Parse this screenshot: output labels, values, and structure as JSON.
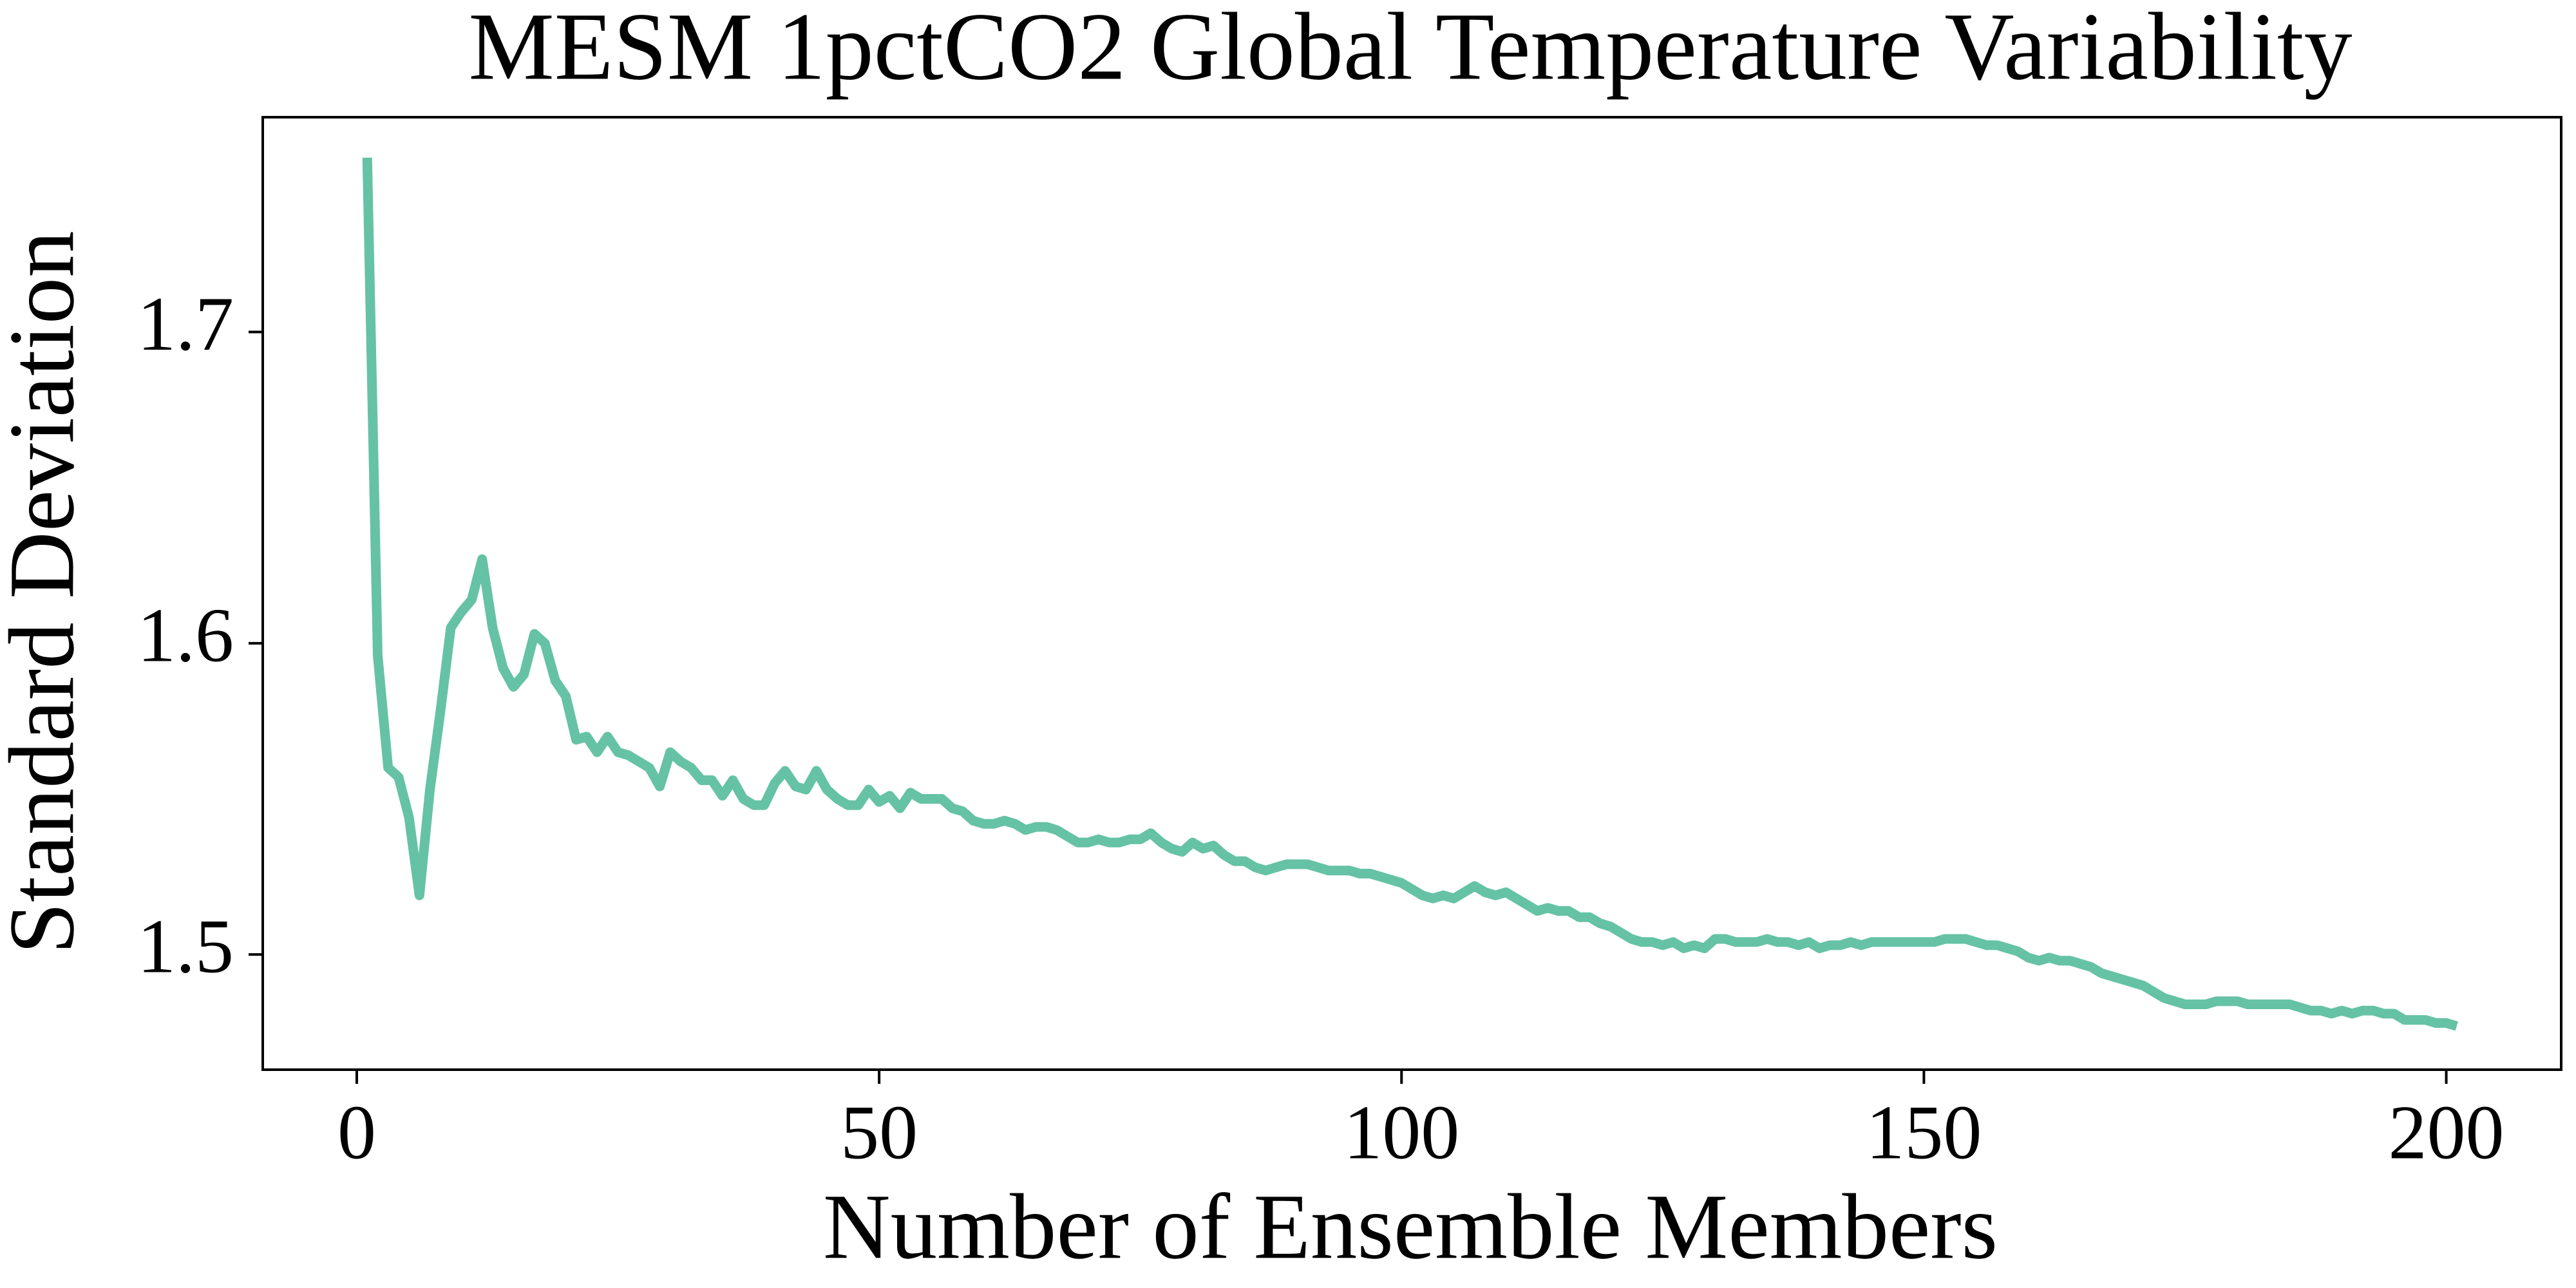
{
  "chart_data": {
    "type": "line",
    "title": "MESM 1pctCO2 Global Temperature Variability",
    "x_label": "Number of Ensemble Members",
    "y_label": "Standard Deviation",
    "x": [
      1,
      2,
      3,
      4,
      5,
      6,
      7,
      8,
      9,
      10,
      11,
      12,
      13,
      14,
      15,
      16,
      17,
      18,
      19,
      20,
      21,
      22,
      23,
      24,
      25,
      26,
      27,
      28,
      29,
      30,
      31,
      32,
      33,
      34,
      35,
      36,
      37,
      38,
      39,
      40,
      41,
      42,
      43,
      44,
      45,
      46,
      47,
      48,
      49,
      50,
      51,
      52,
      53,
      54,
      55,
      56,
      57,
      58,
      59,
      60,
      61,
      62,
      63,
      64,
      65,
      66,
      67,
      68,
      69,
      70,
      71,
      72,
      73,
      74,
      75,
      76,
      77,
      78,
      79,
      80,
      81,
      82,
      83,
      84,
      85,
      86,
      87,
      88,
      89,
      90,
      91,
      92,
      93,
      94,
      95,
      96,
      97,
      98,
      99,
      100,
      101,
      102,
      103,
      104,
      105,
      106,
      107,
      108,
      109,
      110,
      111,
      112,
      113,
      114,
      115,
      116,
      117,
      118,
      119,
      120,
      121,
      122,
      123,
      124,
      125,
      126,
      127,
      128,
      129,
      130,
      131,
      132,
      133,
      134,
      135,
      136,
      137,
      138,
      139,
      140,
      141,
      142,
      143,
      144,
      145,
      146,
      147,
      148,
      149,
      150,
      151,
      152,
      153,
      154,
      155,
      156,
      157,
      158,
      159,
      160,
      161,
      162,
      163,
      164,
      165,
      166,
      167,
      168,
      169,
      170,
      171,
      172,
      173,
      174,
      175,
      176,
      177,
      178,
      179,
      180,
      181,
      182,
      183,
      184,
      185,
      186,
      187,
      188,
      189,
      190,
      191,
      192,
      193,
      194,
      195,
      196,
      197,
      198,
      199,
      200,
      201
    ],
    "series": [
      {
        "color": "#66c2a5",
        "values": [
          1.756,
          1.596,
          1.56,
          1.557,
          1.544,
          1.519,
          1.553,
          1.578,
          1.605,
          1.61,
          1.614,
          1.627,
          1.605,
          1.592,
          1.586,
          1.59,
          1.603,
          1.6,
          1.588,
          1.583,
          1.569,
          1.57,
          1.565,
          1.57,
          1.565,
          1.564,
          1.562,
          1.56,
          1.554,
          1.565,
          1.562,
          1.56,
          1.556,
          1.556,
          1.551,
          1.556,
          1.55,
          1.548,
          1.548,
          1.555,
          1.559,
          1.554,
          1.553,
          1.559,
          1.553,
          1.55,
          1.548,
          1.548,
          1.553,
          1.549,
          1.551,
          1.547,
          1.552,
          1.55,
          1.55,
          1.55,
          1.547,
          1.546,
          1.543,
          1.542,
          1.542,
          1.543,
          1.542,
          1.54,
          1.541,
          1.541,
          1.54,
          1.538,
          1.536,
          1.536,
          1.537,
          1.536,
          1.536,
          1.537,
          1.537,
          1.539,
          1.536,
          1.534,
          1.533,
          1.536,
          1.534,
          1.535,
          1.532,
          1.53,
          1.53,
          1.528,
          1.527,
          1.528,
          1.529,
          1.529,
          1.529,
          1.528,
          1.527,
          1.527,
          1.527,
          1.526,
          1.526,
          1.525,
          1.524,
          1.523,
          1.521,
          1.519,
          1.518,
          1.519,
          1.518,
          1.52,
          1.522,
          1.52,
          1.519,
          1.52,
          1.518,
          1.516,
          1.514,
          1.515,
          1.514,
          1.514,
          1.512,
          1.512,
          1.51,
          1.509,
          1.507,
          1.505,
          1.504,
          1.504,
          1.503,
          1.504,
          1.502,
          1.503,
          1.502,
          1.505,
          1.505,
          1.504,
          1.504,
          1.504,
          1.505,
          1.504,
          1.504,
          1.503,
          1.504,
          1.502,
          1.503,
          1.503,
          1.504,
          1.503,
          1.504,
          1.504,
          1.504,
          1.504,
          1.504,
          1.504,
          1.504,
          1.505,
          1.505,
          1.505,
          1.504,
          1.503,
          1.503,
          1.502,
          1.501,
          1.499,
          1.498,
          1.499,
          1.498,
          1.498,
          1.497,
          1.496,
          1.494,
          1.493,
          1.492,
          1.491,
          1.49,
          1.488,
          1.486,
          1.485,
          1.484,
          1.484,
          1.484,
          1.485,
          1.485,
          1.485,
          1.484,
          1.484,
          1.484,
          1.484,
          1.484,
          1.483,
          1.482,
          1.482,
          1.481,
          1.482,
          1.481,
          1.482,
          1.482,
          1.481,
          1.481,
          1.479,
          1.479,
          1.479,
          1.478,
          1.478,
          1.477
        ]
      }
    ],
    "xlim": [
      -9,
      211
    ],
    "xticks": [
      0,
      50,
      100,
      150,
      200
    ],
    "ylim": [
      1.463,
      1.769
    ],
    "yticks": [
      1.5,
      1.6,
      1.7
    ]
  }
}
